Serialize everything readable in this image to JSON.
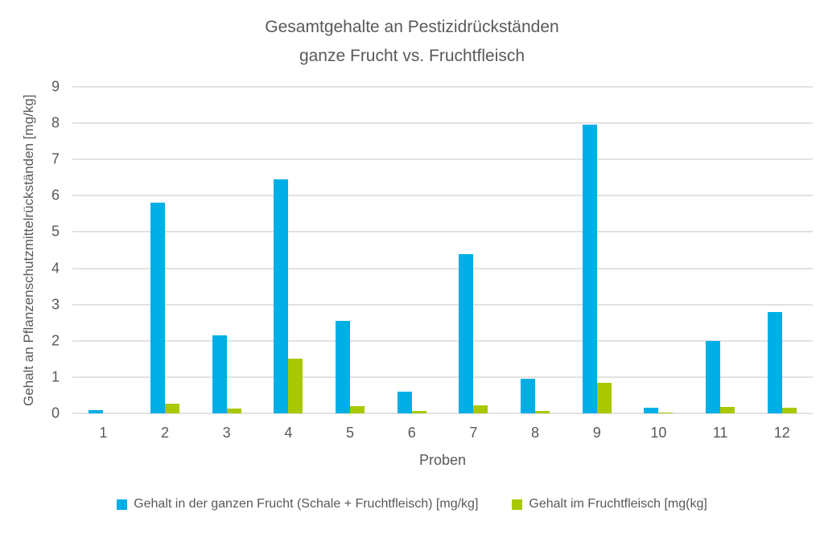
{
  "chart_data": {
    "type": "bar",
    "title": "Gesamtgehalte an Pestizidrückständen ganze Frucht vs. Fruchtfleisch",
    "title_lines": [
      "Gesamtgehalte an Pestizidrückständen",
      "ganze Frucht vs. Fruchtfleisch"
    ],
    "xlabel": "Proben",
    "ylabel": "Gehalt an Pflanzenschutzmittelrückständen [mg/kg]",
    "categories": [
      "1",
      "2",
      "3",
      "4",
      "5",
      "6",
      "7",
      "8",
      "9",
      "10",
      "11",
      "12"
    ],
    "series": [
      {
        "name": "Gehalt in der ganzen Frucht (Schale + Fruchtfleisch) [mg/kg]",
        "color": "#00AEE6",
        "values": [
          0.1,
          5.8,
          2.15,
          6.45,
          2.55,
          0.6,
          4.4,
          0.95,
          7.95,
          0.15,
          2.0,
          2.8
        ]
      },
      {
        "name": "Gehalt im Fruchtfleisch [mg(kg]",
        "color": "#AAC800",
        "values": [
          0,
          0.27,
          0.13,
          1.5,
          0.2,
          0.07,
          0.23,
          0.06,
          0.85,
          0.03,
          0.17,
          0.16
        ]
      }
    ],
    "ylim": [
      0,
      9
    ],
    "ytick_step": 1,
    "grid": true,
    "legend_position": "bottom",
    "text_color": "#595959",
    "gridline_color": "#E2E2E2",
    "background": "#FFFFFF"
  }
}
